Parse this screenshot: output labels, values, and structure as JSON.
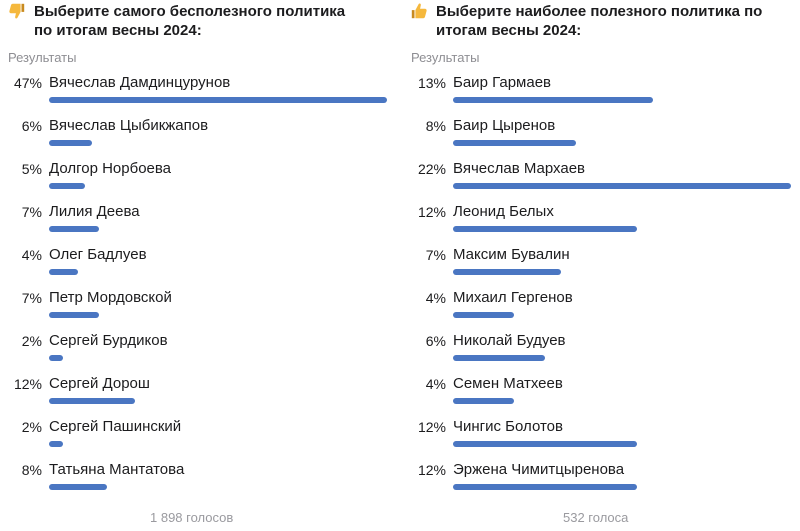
{
  "polls": [
    {
      "icon": "thumbs-down-icon",
      "title_line1": "Выберите самого бесполезного политика",
      "title_line2": "по итогам весны 2024:",
      "results_label": "Результаты",
      "votes": "1 898 голосов",
      "max_percent": 47,
      "options": [
        {
          "percent": 47,
          "percent_label": "47%",
          "name": "Вячеслав Дамдинцурунов"
        },
        {
          "percent": 6,
          "percent_label": "6%",
          "name": "Вячеслав Цыбикжапов"
        },
        {
          "percent": 5,
          "percent_label": "5%",
          "name": "Долгор Норбоева"
        },
        {
          "percent": 7,
          "percent_label": "7%",
          "name": "Лилия Деева"
        },
        {
          "percent": 4,
          "percent_label": "4%",
          "name": "Олег Бадлуев"
        },
        {
          "percent": 7,
          "percent_label": "7%",
          "name": "Петр Мордовской"
        },
        {
          "percent": 2,
          "percent_label": "2%",
          "name": "Сергей Бурдиков"
        },
        {
          "percent": 12,
          "percent_label": "12%",
          "name": "Сергей Дорош"
        },
        {
          "percent": 2,
          "percent_label": "2%",
          "name": "Сергей Пашинский"
        },
        {
          "percent": 8,
          "percent_label": "8%",
          "name": "Татьяна Мантатова"
        }
      ]
    },
    {
      "icon": "thumbs-up-icon",
      "title_line1": "Выберите наиболее полезного политика по",
      "title_line2": "итогам весны 2024:",
      "results_label": "Результаты",
      "votes": "532 голоса",
      "max_percent": 22,
      "options": [
        {
          "percent": 13,
          "percent_label": "13%",
          "name": "Баир Гармаев"
        },
        {
          "percent": 8,
          "percent_label": "8%",
          "name": "Баир Цыренов"
        },
        {
          "percent": 22,
          "percent_label": "22%",
          "name": "Вячеслав Мархаев"
        },
        {
          "percent": 12,
          "percent_label": "12%",
          "name": "Леонид Белых"
        },
        {
          "percent": 7,
          "percent_label": "7%",
          "name": "Максим Бувалин"
        },
        {
          "percent": 4,
          "percent_label": "4%",
          "name": "Михаил Гергенов"
        },
        {
          "percent": 6,
          "percent_label": "6%",
          "name": "Николай Будуев"
        },
        {
          "percent": 4,
          "percent_label": "4%",
          "name": "Семен Матхеев"
        },
        {
          "percent": 12,
          "percent_label": "12%",
          "name": "Чингис Болотов"
        },
        {
          "percent": 12,
          "percent_label": "12%",
          "name": "Эржена Чимитцыренова"
        }
      ]
    }
  ],
  "colors": {
    "bar": "#4a76c2",
    "muted_text": "#8e8e93",
    "thumb": "#f5b83d"
  }
}
